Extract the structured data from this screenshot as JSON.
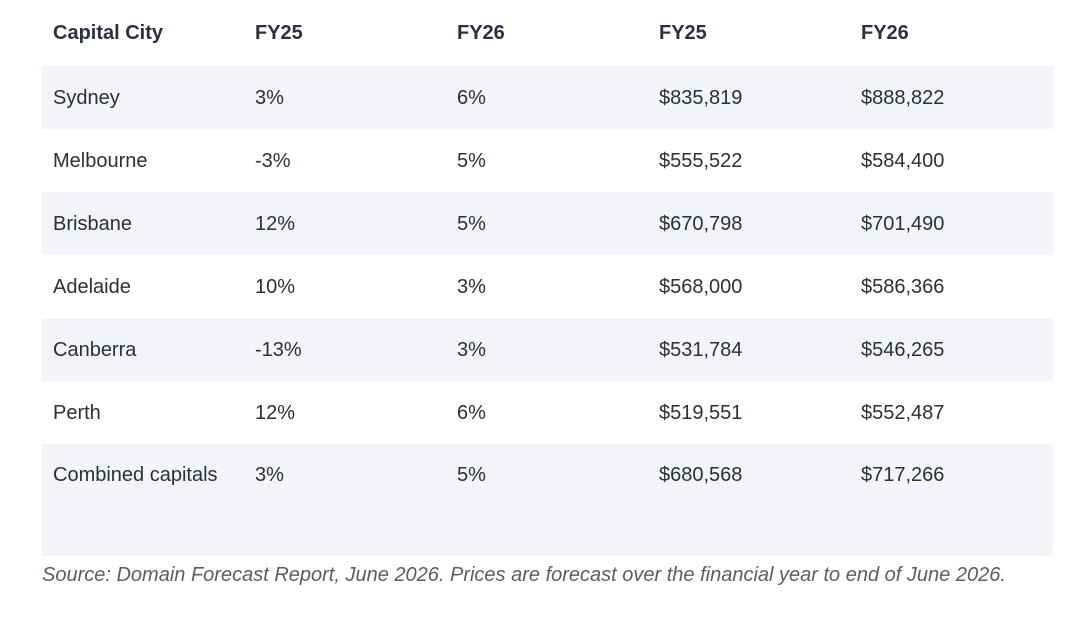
{
  "table": {
    "headers": [
      "Capital City",
      "FY25",
      "FY26",
      "FY25",
      "FY26"
    ],
    "rows": [
      [
        "Sydney",
        "3%",
        "6%",
        "$835,819",
        "$888,822"
      ],
      [
        "Melbourne",
        "-3%",
        "5%",
        "$555,522",
        "$584,400"
      ],
      [
        "Brisbane",
        "12%",
        "5%",
        "$670,798",
        "$701,490"
      ],
      [
        "Adelaide",
        "10%",
        "3%",
        "$568,000",
        "$586,366"
      ],
      [
        "Canberra",
        "-13%",
        "3%",
        "$531,784",
        "$546,265"
      ],
      [
        "Perth",
        "12%",
        "6%",
        "$519,551",
        "$552,487"
      ],
      [
        "Combined capitals",
        "3%",
        "5%",
        "$680,568",
        "$717,266"
      ]
    ]
  },
  "caption": "Source: Domain Forecast Report, June 2026. Prices are forecast over the financial year to end of June 2026.",
  "colors": {
    "row_shade": "#f2f4f7",
    "text": "#2b2f38",
    "caption_text": "#585d68"
  }
}
